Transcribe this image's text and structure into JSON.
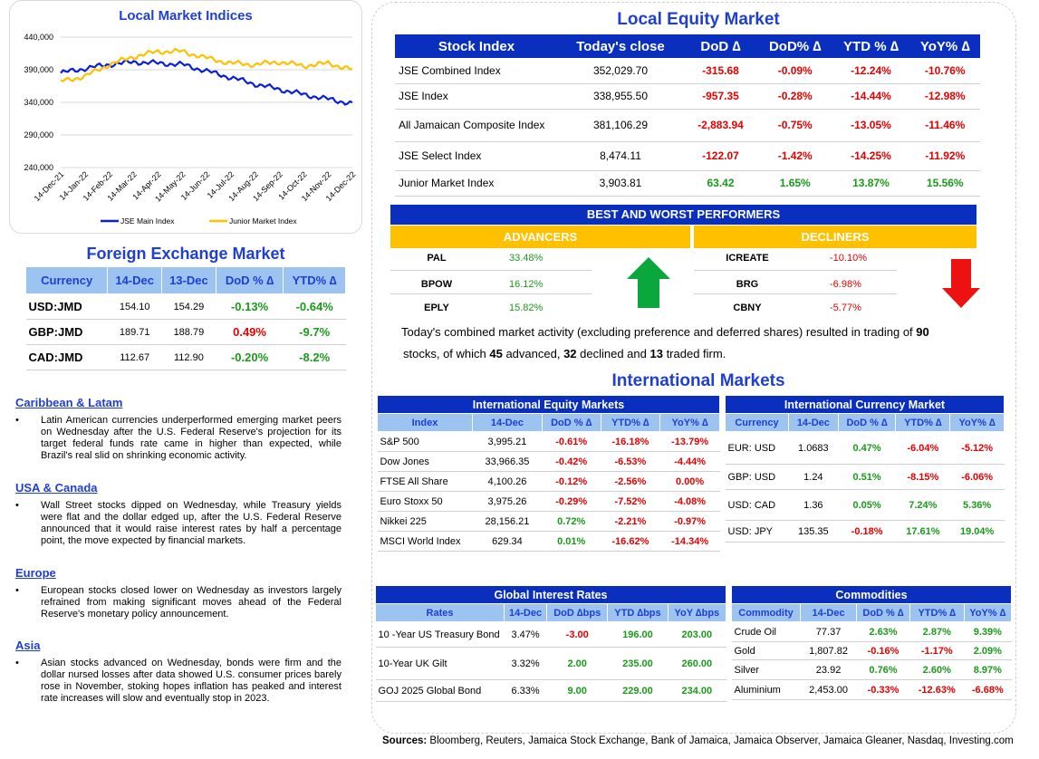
{
  "chart": {
    "title": "Local Market Indices",
    "y_ticks": [
      "440,000",
      "390,000",
      "340,000",
      "290,000",
      "240,000"
    ],
    "x_ticks": [
      "14-Dec-21",
      "14-Jan-22",
      "14-Feb-22",
      "14-Mar-22",
      "14-Apr-22",
      "14-May-22",
      "14-Jun-22",
      "14-Jul-22",
      "14-Aug-22",
      "14-Sep-22",
      "14-Oct-22",
      "14-Nov-22",
      "14-Dec-22"
    ],
    "legend": [
      "JSE Main Index",
      "Junior Market Index"
    ],
    "colors": {
      "main": "#0a1fd6",
      "junior": "#ffc000"
    }
  },
  "chart_data": {
    "type": "line",
    "title": "Local Market Indices",
    "x": [
      "14-Dec-21",
      "14-Jan-22",
      "14-Feb-22",
      "14-Mar-22",
      "14-Apr-22",
      "14-May-22",
      "14-Jun-22",
      "14-Jul-22",
      "14-Aug-22",
      "14-Sep-22",
      "14-Oct-22",
      "14-Nov-22",
      "14-Dec-22"
    ],
    "ylim": [
      240000,
      440000
    ],
    "series": [
      {
        "name": "JSE Main Index",
        "values": [
          385000,
          392000,
          398000,
          402000,
          400000,
          398000,
          388000,
          378000,
          368000,
          360000,
          352000,
          345000,
          338000
        ]
      },
      {
        "name": "Junior Market Index",
        "values": [
          372000,
          380000,
          398000,
          410000,
          418000,
          418000,
          408000,
          400000,
          398000,
          402000,
          396000,
          400000,
          390000
        ]
      }
    ],
    "legend": "bottom",
    "grid": true
  },
  "equity": {
    "title": "Local Equity Market",
    "headers": [
      "Stock Index",
      "Today's close",
      "DoD  ∆",
      "DoD% ∆",
      "YTD % ∆",
      "YoY% ∆"
    ],
    "rows": [
      [
        "JSE Combined Index",
        "352,029.70",
        "-315.68",
        "-0.09%",
        "-12.24%",
        "-10.76%"
      ],
      [
        "JSE Index",
        "338,955.50",
        "-957.35",
        "-0.28%",
        "-14.44%",
        "-12.98%"
      ],
      [
        "All Jamaican Composite Index",
        "381,106.29",
        "-2,883.94",
        "-0.75%",
        "-13.05%",
        "-11.46%"
      ],
      [
        "JSE Select Index",
        "8,474.11",
        "-122.07",
        "-1.42%",
        "-14.25%",
        "-11.92%"
      ],
      [
        "Junior Market Index",
        "3,903.81",
        "63.42",
        "1.65%",
        "13.87%",
        "15.56%"
      ]
    ]
  },
  "fx": {
    "title": "Foreign Exchange Market",
    "headers": [
      "Currency",
      "14-Dec",
      "13-Dec",
      "DoD % ∆",
      "YTD% ∆"
    ],
    "rows": [
      [
        "USD:JMD",
        "154.10",
        "154.29",
        "-0.13%",
        "-0.64%"
      ],
      [
        "GBP:JMD",
        "189.71",
        "188.79",
        "0.49%",
        "-9.7%"
      ],
      [
        "CAD:JMD",
        "112.67",
        "112.90",
        "-0.20%",
        "-8.2%"
      ]
    ]
  },
  "performers": {
    "title": "BEST AND WORST PERFORMERS",
    "advancers_label": "ADVANCERS",
    "decliners_label": "DECLINERS",
    "advancers": [
      [
        "PAL",
        "33.48%"
      ],
      [
        "BPOW",
        "16.12%"
      ],
      [
        "EPLY",
        "15.82%"
      ]
    ],
    "decliners": [
      [
        "ICREATE",
        "-10.10%"
      ],
      [
        "BRG",
        "-6.98%"
      ],
      [
        "CBNY",
        "-5.77%"
      ]
    ],
    "summary_pre": "Today's combined market activity (excluding preference and deferred shares) resulted in trading of ",
    "traded": "90",
    "summary_mid1": "stocks, of which ",
    "advanced": "45",
    "summary_mid2": " advanced, ",
    "declined": "32",
    "summary_mid3": " declined and ",
    "firm": "13",
    "summary_end": " traded firm."
  },
  "news": {
    "sections": [
      {
        "head": "Caribbean & Latam",
        "body": "Latin American currencies underperformed emerging market peers on Wednesday after the U.S. Federal Reserve's projection for its target federal funds rate came in higher than expected, while Brazil's real slid on shrinking economic activity."
      },
      {
        "head": "USA & Canada",
        "body": "Wall Street stocks dipped on Wednesday, while Treasury yields were flat and the dollar edged up, after the U.S. Federal Reserve announced that it would raise interest rates by half a percentage point, the move expected by financial markets."
      },
      {
        "head": "Europe",
        "body": "European stocks closed lower on Wednesday as investors largely refrained from making significant moves ahead of the Federal Reserve's monetary policy announcement."
      },
      {
        "head": "Asia",
        "body": "Asian stocks advanced on Wednesday, bonds were firm and the dollar nursed losses after data showed U.S. consumer prices barely rose in November, stoking hopes inflation has peaked and interest rate increases will slow and eventually stop in 2023."
      }
    ],
    "bullet": "•"
  },
  "intl": {
    "title": "International Markets",
    "equity": {
      "title": "International Equity Markets",
      "headers": [
        "Index",
        "14-Dec",
        "DoD % ∆",
        "YTD% ∆",
        "YoY% ∆"
      ],
      "rows": [
        [
          "S&P 500",
          "3,995.21",
          "-0.61%",
          "-16.18%",
          "-13.79%"
        ],
        [
          "Dow Jones",
          "33,966.35",
          "-0.42%",
          "-6.53%",
          "-4.44%"
        ],
        [
          "FTSE All Share",
          "4,100.26",
          "-0.12%",
          "-2.56%",
          "0.00%"
        ],
        [
          "Euro Stoxx 50",
          "3,975.26",
          "-0.29%",
          "-7.52%",
          "-4.08%"
        ],
        [
          "Nikkei 225",
          "28,156.21",
          "0.72%",
          "-2.21%",
          "-0.97%"
        ],
        [
          "MSCI World Index",
          "629.34",
          "0.01%",
          "-16.62%",
          "-14.34%"
        ]
      ]
    },
    "currency": {
      "title": "International Currency Market",
      "headers": [
        "Currency",
        "14-Dec",
        "DoD % ∆",
        "YTD% ∆",
        "YoY% ∆"
      ],
      "rows": [
        [
          "EUR: USD",
          "1.0683",
          "0.47%",
          "-6.04%",
          "-5.12%"
        ],
        [
          "GBP: USD",
          "1.24",
          "0.51%",
          "-8.15%",
          "-6.06%"
        ],
        [
          "USD: CAD",
          "1.36",
          "0.05%",
          "7.24%",
          "5.36%"
        ],
        [
          "USD: JPY",
          "135.35",
          "-0.18%",
          "17.61%",
          "19.04%"
        ]
      ]
    },
    "rates": {
      "title": "Global Interest Rates",
      "headers": [
        "Rates",
        "14-Dec",
        "DoD ∆bps",
        "YTD ∆bps",
        "YoY ∆bps"
      ],
      "rows": [
        [
          "10 -Year US Treasury Bond",
          "3.47%",
          "-3.00",
          "196.00",
          "203.00"
        ],
        [
          "10-Year UK Gilt",
          "3.32%",
          "2.00",
          "235.00",
          "260.00"
        ],
        [
          "GOJ 2025 Global Bond",
          "6.33%",
          "9.00",
          "229.00",
          "234.00"
        ]
      ]
    },
    "commodities": {
      "title": "Commodities",
      "headers": [
        "Commodity",
        "14-Dec",
        "DoD % ∆",
        "YTD% ∆",
        "YoY% ∆"
      ],
      "rows": [
        [
          "Crude Oil",
          "77.37",
          "2.63%",
          "2.87%",
          "9.39%"
        ],
        [
          "Gold",
          "1,807.82",
          "-0.16%",
          "-1.17%",
          "2.09%"
        ],
        [
          "Silver",
          "23.92",
          "0.76%",
          "2.60%",
          "8.97%"
        ],
        [
          "Aluminium",
          "2,453.00",
          "-0.33%",
          "-12.63%",
          "-6.68%"
        ]
      ]
    }
  },
  "sources": {
    "label": "Sources:",
    "text": " Bloomberg, Reuters, Jamaica Stock Exchange, Bank of Jamaica, Jamaica Observer, Jamaica Gleaner, Nasdaq, Investing.com"
  }
}
